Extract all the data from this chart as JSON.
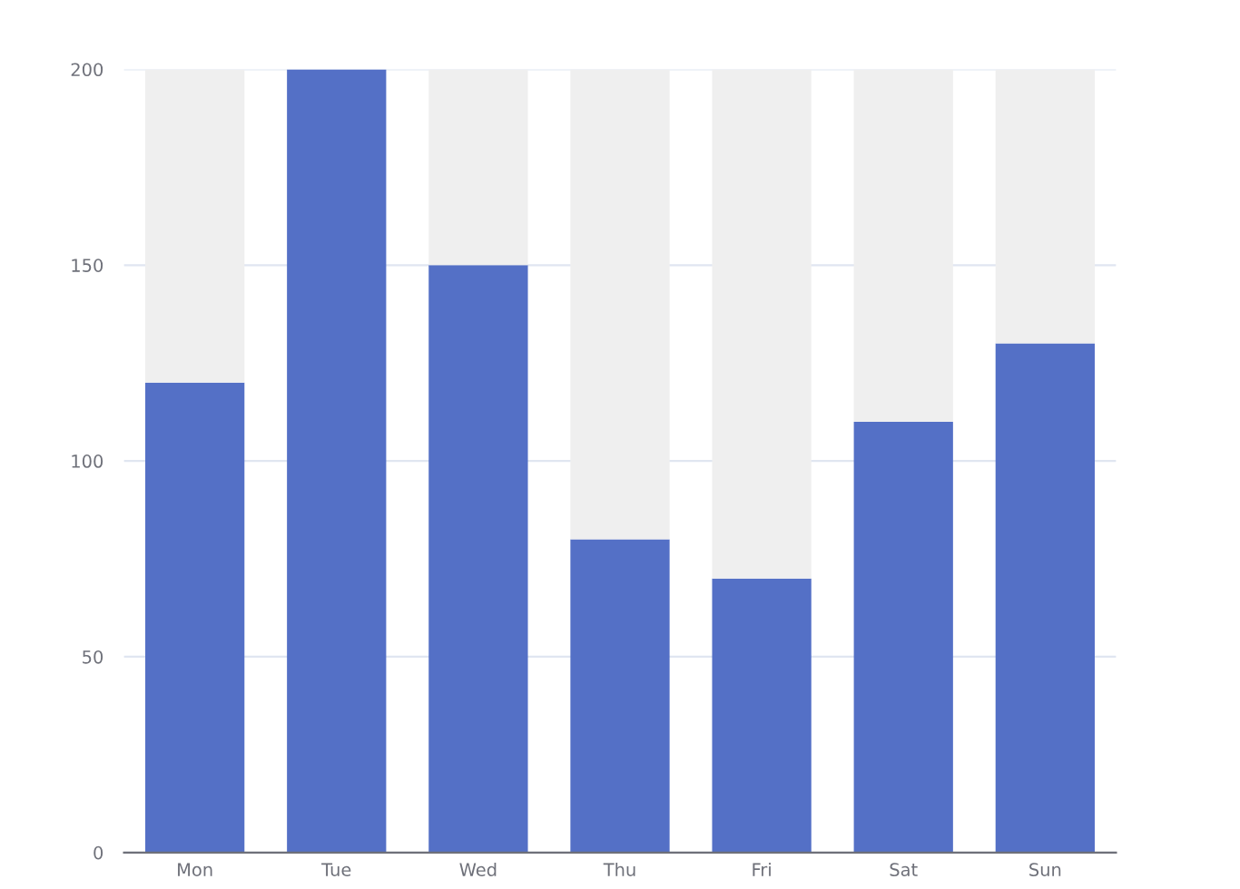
{
  "chart_data": {
    "type": "bar",
    "stacked": true,
    "categories": [
      "Mon",
      "Tue",
      "Wed",
      "Thu",
      "Fri",
      "Sat",
      "Sun"
    ],
    "series": [
      {
        "color": "#5470c6",
        "values": [
          120,
          200,
          150,
          80,
          70,
          110,
          130
        ]
      },
      {
        "color": "#efefef",
        "values": [
          80,
          0,
          50,
          120,
          130,
          90,
          70
        ]
      }
    ],
    "ylim": [
      0,
      200
    ],
    "yticks": [
      0,
      50,
      100,
      150,
      200
    ],
    "grid": "y"
  }
}
